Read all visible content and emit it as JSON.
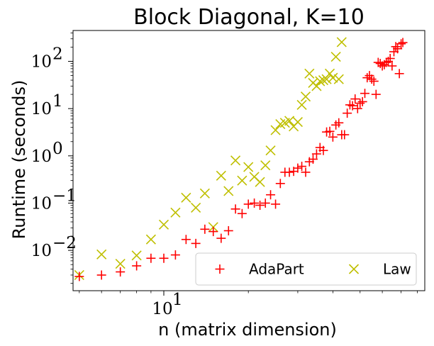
{
  "chart_data": {
    "type": "scatter",
    "title": "Block Diagonal, K=10",
    "xlabel": "n (matrix dimension)",
    "ylabel": "Runtime (seconds)",
    "xscale": "log",
    "yscale": "log",
    "xlim": [
      4.75,
      85
    ],
    "ylim": [
      0.0014,
      450
    ],
    "x_ticks": [
      {
        "value": 10,
        "label": "10"
      }
    ],
    "y_ticks": [
      {
        "value": 0.01,
        "label": "10"
      },
      {
        "value": 0.1,
        "label": "10"
      },
      {
        "value": 1,
        "label": "10"
      },
      {
        "value": 10,
        "label": "10"
      },
      {
        "value": 100,
        "label": "10"
      }
    ],
    "y_tick_exponents": [
      "−2",
      "−1",
      "0",
      "1",
      "2"
    ],
    "x_tick_exponents": [
      "1"
    ],
    "legend": {
      "placement": "lower-right",
      "columns": 2
    },
    "series": [
      {
        "name": "AdaPart",
        "marker": "+",
        "color": "#ff0000",
        "points": [
          [
            5,
            0.0028
          ],
          [
            6,
            0.003
          ],
          [
            7,
            0.0035
          ],
          [
            8,
            0.0047
          ],
          [
            9,
            0.0068
          ],
          [
            10,
            0.0068
          ],
          [
            11,
            0.008
          ],
          [
            12,
            0.017
          ],
          [
            13,
            0.014
          ],
          [
            14,
            0.028
          ],
          [
            15,
            0.025
          ],
          [
            16,
            0.018
          ],
          [
            17,
            0.026
          ],
          [
            18,
            0.075
          ],
          [
            19,
            0.06
          ],
          [
            20,
            0.095
          ],
          [
            21,
            0.1
          ],
          [
            22,
            0.09
          ],
          [
            23,
            0.1
          ],
          [
            24,
            0.15
          ],
          [
            25,
            0.095
          ],
          [
            26,
            0.26
          ],
          [
            27,
            0.45
          ],
          [
            28,
            0.45
          ],
          [
            29,
            0.47
          ],
          [
            30,
            0.55
          ],
          [
            31,
            0.6
          ],
          [
            32,
            0.45
          ],
          [
            33,
            0.75
          ],
          [
            34,
            0.85
          ],
          [
            35,
            1.1
          ],
          [
            36,
            1.5
          ],
          [
            37,
            1.3
          ],
          [
            38,
            3.2
          ],
          [
            39,
            3.3
          ],
          [
            40,
            2.5
          ],
          [
            41,
            4.5
          ],
          [
            42,
            5.0
          ],
          [
            43,
            2.8
          ],
          [
            44,
            2.8
          ],
          [
            45,
            8.0
          ],
          [
            46,
            12.0
          ],
          [
            47,
            11.5
          ],
          [
            48,
            16.0
          ],
          [
            49,
            10.0
          ],
          [
            50,
            13.0
          ],
          [
            51,
            14.0
          ],
          [
            52,
            21.0
          ],
          [
            53,
            45.0
          ],
          [
            54,
            50.0
          ],
          [
            55,
            42.0
          ],
          [
            56,
            38.0
          ],
          [
            57,
            20.0
          ],
          [
            58,
            95.0
          ],
          [
            59,
            90.0
          ],
          [
            60,
            80.0
          ],
          [
            61,
            85.0
          ],
          [
            62,
            95.0
          ],
          [
            63,
            100.0
          ],
          [
            64,
            115.0
          ],
          [
            65,
            80.0
          ],
          [
            66,
            160.0
          ],
          [
            67,
            205.0
          ],
          [
            68,
            185.0
          ],
          [
            69,
            55.0
          ],
          [
            70,
            235.0
          ],
          [
            71,
            250.0
          ]
        ]
      },
      {
        "name": "Law",
        "marker": "x",
        "color": "#bfbf00",
        "points": [
          [
            5,
            0.003
          ],
          [
            6,
            0.0082
          ],
          [
            7,
            0.0052
          ],
          [
            8,
            0.0078
          ],
          [
            9,
            0.017
          ],
          [
            10,
            0.035
          ],
          [
            11,
            0.063
          ],
          [
            12,
            0.13
          ],
          [
            13,
            0.08
          ],
          [
            14,
            0.16
          ],
          [
            15,
            0.031
          ],
          [
            16,
            0.38
          ],
          [
            17,
            0.18
          ],
          [
            18,
            0.8
          ],
          [
            19,
            0.3
          ],
          [
            20,
            0.58
          ],
          [
            21,
            0.36
          ],
          [
            22,
            0.28
          ],
          [
            23,
            0.63
          ],
          [
            24,
            1.3
          ],
          [
            25,
            3.5
          ],
          [
            26,
            4.7
          ],
          [
            27,
            5.0
          ],
          [
            28,
            5.5
          ],
          [
            29,
            4.2
          ],
          [
            30,
            5.2
          ],
          [
            31,
            12.0
          ],
          [
            32,
            18.0
          ],
          [
            33,
            55.0
          ],
          [
            34,
            35.0
          ],
          [
            35,
            30.0
          ],
          [
            36,
            38.0
          ],
          [
            37,
            40.0
          ],
          [
            38,
            42.0
          ],
          [
            39,
            55.0
          ],
          [
            40,
            45.0
          ],
          [
            41,
            125.0
          ],
          [
            42,
            42.0
          ],
          [
            43,
            255.0
          ]
        ]
      }
    ]
  }
}
